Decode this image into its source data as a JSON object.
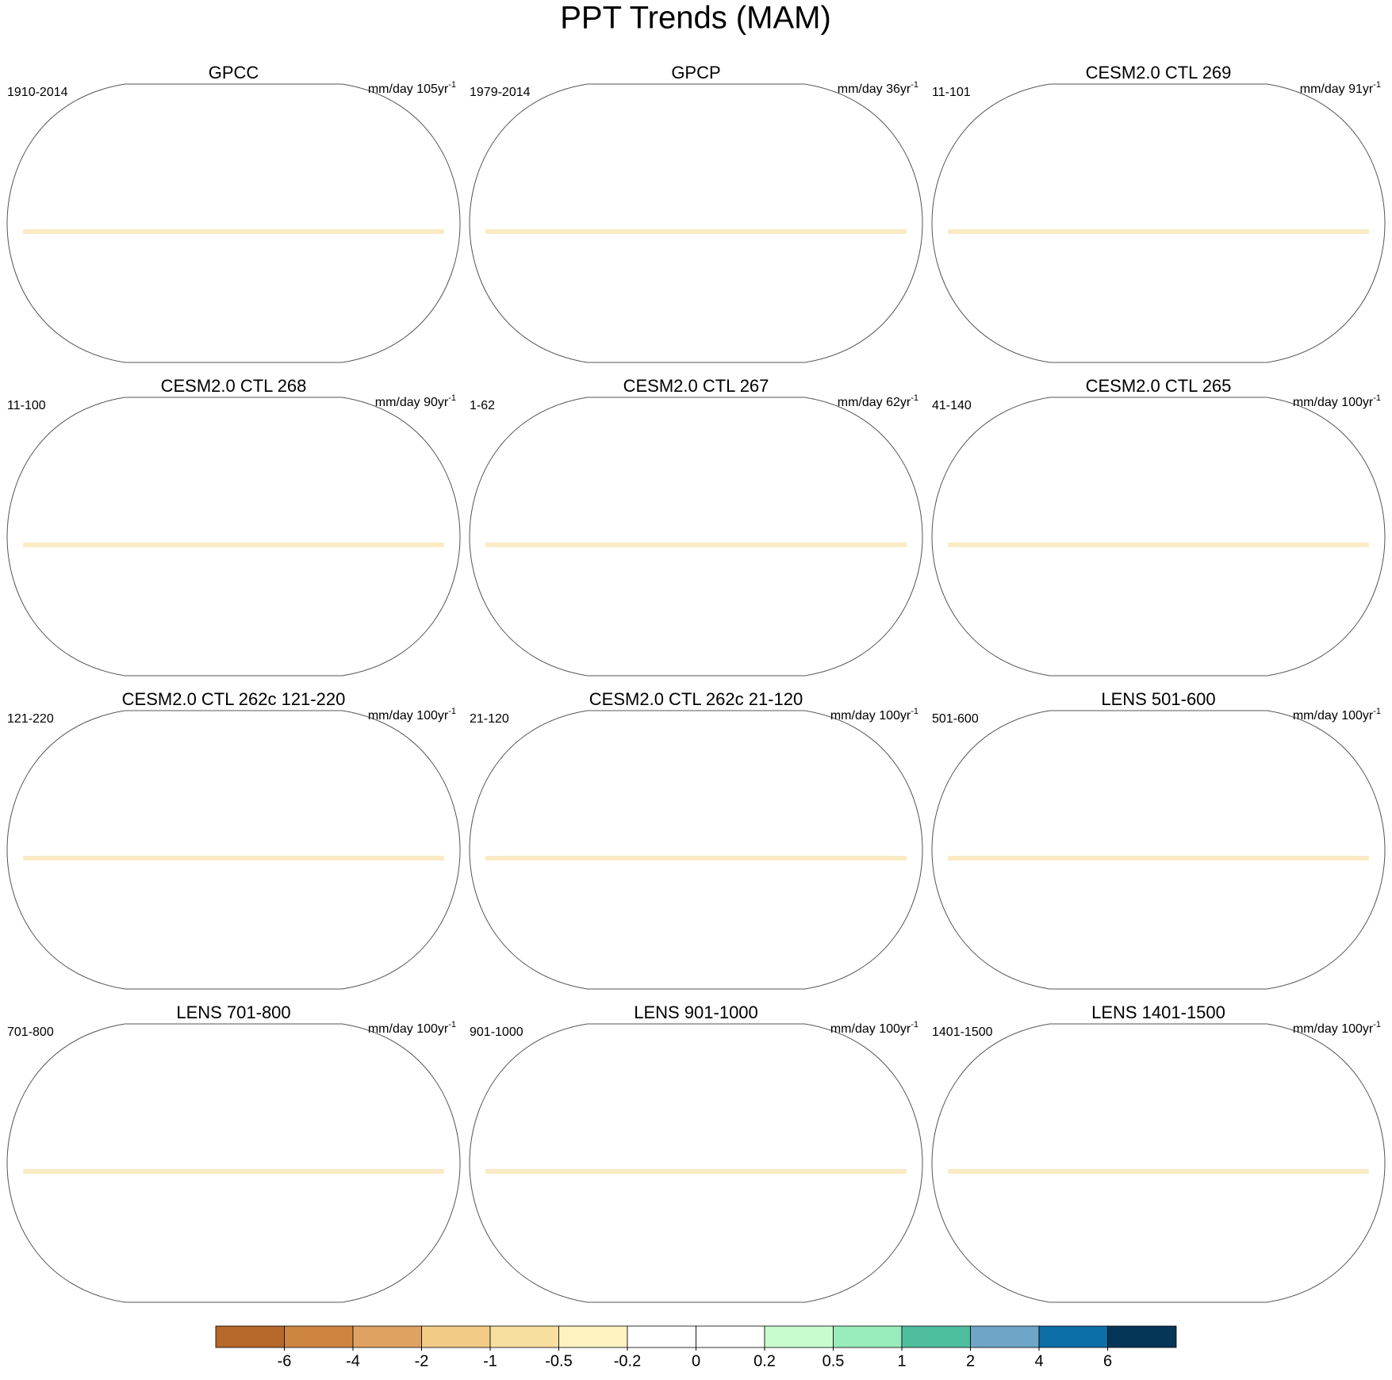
{
  "title": "PPT Trends (MAM)",
  "panels": [
    {
      "title": "GPCC",
      "left_label": "1910-2014",
      "right_label": "mm/day 105yr",
      "right_sup": "-1"
    },
    {
      "title": "GPCP",
      "left_label": "1979-2014",
      "right_label": "mm/day 36yr",
      "right_sup": "-1"
    },
    {
      "title": "CESM2.0 CTL 269",
      "left_label": "11-101",
      "right_label": "mm/day 91yr",
      "right_sup": "-1"
    },
    {
      "title": "CESM2.0 CTL 268",
      "left_label": "11-100",
      "right_label": "mm/day 90yr",
      "right_sup": "-1"
    },
    {
      "title": "CESM2.0 CTL 267",
      "left_label": "1-62",
      "right_label": "mm/day 62yr",
      "right_sup": "-1"
    },
    {
      "title": "CESM2.0 CTL 265",
      "left_label": "41-140",
      "right_label": "mm/day 100yr",
      "right_sup": "-1"
    },
    {
      "title": "CESM2.0 CTL 262c 121-220",
      "left_label": "121-220",
      "right_label": "mm/day 100yr",
      "right_sup": "-1"
    },
    {
      "title": "CESM2.0 CTL 262c 21-120",
      "left_label": "21-120",
      "right_label": "mm/day 100yr",
      "right_sup": "-1"
    },
    {
      "title": "LENS 501-600",
      "left_label": "501-600",
      "right_label": "mm/day 100yr",
      "right_sup": "-1"
    },
    {
      "title": "LENS 701-800",
      "left_label": "701-800",
      "right_label": "mm/day 100yr",
      "right_sup": "-1"
    },
    {
      "title": "LENS 901-1000",
      "left_label": "901-1000",
      "right_label": "mm/day 100yr",
      "right_sup": "-1"
    },
    {
      "title": "LENS 1401-1500",
      "left_label": "1401-1500",
      "right_label": "mm/day 100yr",
      "right_sup": "-1"
    }
  ],
  "colorbar": {
    "colors": [
      "#b5682a",
      "#cd8540",
      "#dfa262",
      "#f2cb86",
      "#f7dfa0",
      "#fdf2c0",
      "#ffffff",
      "#ffffff",
      "#c8fcce",
      "#99ecbb",
      "#4fbe9f",
      "#6fa6c8",
      "#0d6ea8",
      "#053657"
    ],
    "ticks": [
      -6,
      -4,
      -2,
      -1,
      -0.5,
      -0.2,
      0,
      0.2,
      0.5,
      1,
      2,
      4,
      6
    ]
  }
}
